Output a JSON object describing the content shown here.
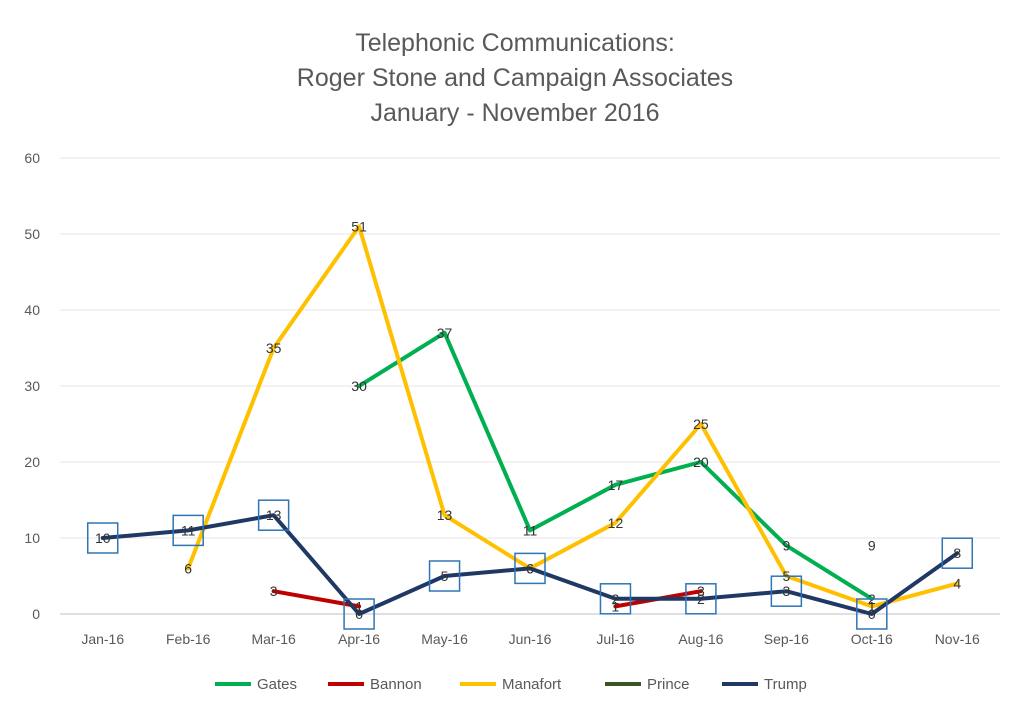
{
  "chart_data": {
    "type": "line",
    "title": [
      "Telephonic Communications:",
      "Roger Stone and Campaign Associates",
      "January - November 2016"
    ],
    "xlabel": "",
    "ylabel": "",
    "categories": [
      "Jan-16",
      "Feb-16",
      "Mar-16",
      "Apr-16",
      "May-16",
      "Jun-16",
      "Jul-16",
      "Aug-16",
      "Sep-16",
      "Oct-16",
      "Nov-16"
    ],
    "ylim": [
      0,
      60
    ],
    "yticks": [
      "0",
      "10",
      "20",
      "30",
      "40",
      "50",
      "60"
    ],
    "grid": true,
    "legend_position": "bottom",
    "series": [
      {
        "name": "Gates",
        "color": "#00b050",
        "values": [
          null,
          null,
          null,
          30,
          37,
          11,
          17,
          20,
          9,
          2,
          null
        ]
      },
      {
        "name": "Bannon",
        "color": "#c00000",
        "values": [
          null,
          null,
          3,
          1,
          null,
          null,
          1,
          3,
          null,
          null,
          null
        ]
      },
      {
        "name": "Manafort",
        "color": "#ffc000",
        "values": [
          null,
          6,
          35,
          51,
          13,
          6,
          12,
          25,
          5,
          1,
          4
        ]
      },
      {
        "name": "Prince",
        "color": "#375623",
        "values": [
          null,
          null,
          null,
          null,
          null,
          null,
          null,
          null,
          null,
          9,
          null
        ]
      },
      {
        "name": "Trump",
        "color": "#1f3864",
        "boxed_labels": true,
        "values": [
          10,
          11,
          13,
          0,
          5,
          6,
          2,
          2,
          3,
          0,
          8
        ]
      }
    ]
  }
}
